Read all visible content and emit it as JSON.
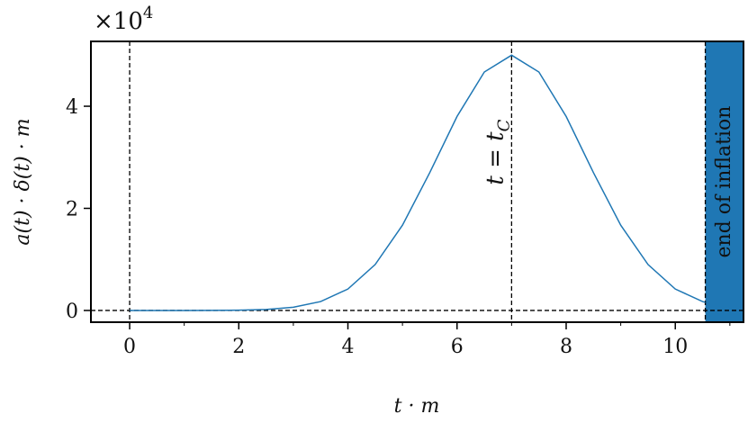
{
  "chart_data": {
    "type": "line",
    "y_offset": {
      "text": "×10",
      "sup": "4"
    },
    "xlabel": "t · m",
    "ylabel": "a(t) · δ(t) · m",
    "x": [
      0,
      0.5,
      1,
      1.5,
      2,
      2.5,
      3,
      3.5,
      4,
      4.5,
      5,
      5.5,
      6,
      6.5,
      7,
      7.5,
      8,
      8.5,
      9,
      9.5,
      10,
      10.5,
      10.55
    ],
    "series": [
      {
        "color": "#1f77b4",
        "values": [
          0,
          0,
          0,
          0.001,
          0.005,
          0.019,
          0.063,
          0.174,
          0.42,
          0.9,
          1.67,
          2.7,
          3.8,
          4.67,
          5.0,
          4.67,
          3.8,
          2.7,
          1.67,
          0.9,
          0.42,
          0.174,
          0.16
        ]
      }
    ],
    "xlim": [
      -0.71,
      11.25
    ],
    "ylim": [
      -0.23,
      5.27
    ],
    "xticks": [
      0,
      2,
      4,
      6,
      8,
      10
    ],
    "xminorticks": [
      1,
      3,
      5,
      7,
      9,
      11
    ],
    "yticks": [
      0,
      2,
      4
    ],
    "vlines": [
      0,
      7,
      10.55
    ],
    "hline": 0,
    "annotations": [
      {
        "x": 7,
        "text": "t = t",
        "sub": "C"
      }
    ],
    "shade": {
      "from": 10.55,
      "color": "#1f77b4",
      "label": "end of inflation"
    }
  }
}
